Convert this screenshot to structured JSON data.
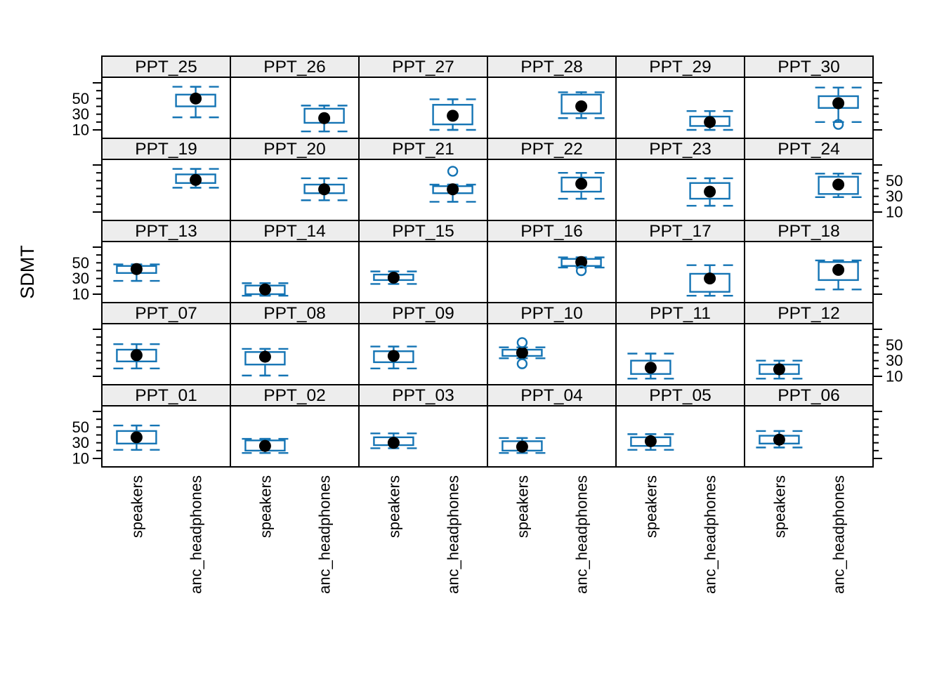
{
  "figure": {
    "ylabel": "SDMT",
    "background": "#ffffff"
  },
  "colors": {
    "box_blue": "#1474b4",
    "median_dot": "#000000",
    "panel_border": "#000000",
    "strip_bg": "#ededed",
    "text": "#000000"
  },
  "axes": {
    "y_tick_values": [
      10,
      20,
      30,
      40,
      50,
      60,
      70
    ],
    "y_labeled_tick_values": [
      50,
      30,
      10
    ],
    "y_tick_labels": [
      "50",
      "30",
      "10"
    ],
    "x_categories": [
      "speakers",
      "anc_headphones"
    ]
  },
  "chart_data": {
    "type": "boxplot",
    "title": "",
    "xlabel": "",
    "ylabel": "SDMT",
    "x_categories": [
      "speakers",
      "anc_headphones"
    ],
    "ylim": [
      0,
      75
    ],
    "facet_rows": [
      [
        "PPT_25",
        "PPT_26",
        "PPT_27",
        "PPT_28",
        "PPT_29",
        "PPT_30"
      ],
      [
        "PPT_19",
        "PPT_20",
        "PPT_21",
        "PPT_22",
        "PPT_23",
        "PPT_24"
      ],
      [
        "PPT_13",
        "PPT_14",
        "PPT_15",
        "PPT_16",
        "PPT_17",
        "PPT_18"
      ],
      [
        "PPT_07",
        "PPT_08",
        "PPT_09",
        "PPT_10",
        "PPT_11",
        "PPT_12"
      ],
      [
        "PPT_01",
        "PPT_02",
        "PPT_03",
        "PPT_04",
        "PPT_05",
        "PPT_06"
      ]
    ],
    "panels": [
      {
        "name": "PPT_01",
        "condition": "speakers",
        "stats": {
          "lo": 21,
          "q1": 29,
          "med": 37,
          "q3": 45,
          "hi": 52
        },
        "outliers": []
      },
      {
        "name": "PPT_02",
        "condition": "speakers",
        "stats": {
          "lo": 17,
          "q1": 20,
          "med": 26,
          "q3": 33,
          "hi": 35
        },
        "outliers": []
      },
      {
        "name": "PPT_03",
        "condition": "speakers",
        "stats": {
          "lo": 23,
          "q1": 27,
          "med": 30,
          "q3": 37,
          "hi": 42
        },
        "outliers": []
      },
      {
        "name": "PPT_04",
        "condition": "speakers",
        "stats": {
          "lo": 17,
          "q1": 20,
          "med": 25,
          "q3": 32,
          "hi": 36
        },
        "outliers": []
      },
      {
        "name": "PPT_05",
        "condition": "speakers",
        "stats": {
          "lo": 21,
          "q1": 26,
          "med": 32,
          "q3": 37,
          "hi": 41
        },
        "outliers": []
      },
      {
        "name": "PPT_06",
        "condition": "speakers",
        "stats": {
          "lo": 24,
          "q1": 29,
          "med": 34,
          "q3": 39,
          "hi": 45
        },
        "outliers": []
      },
      {
        "name": "PPT_07",
        "condition": "speakers",
        "stats": {
          "lo": 20,
          "q1": 29,
          "med": 37,
          "q3": 44,
          "hi": 51
        },
        "outliers": []
      },
      {
        "name": "PPT_08",
        "condition": "speakers",
        "stats": {
          "lo": 11,
          "q1": 25,
          "med": 35,
          "q3": 41,
          "hi": 45
        },
        "outliers": []
      },
      {
        "name": "PPT_09",
        "condition": "speakers",
        "stats": {
          "lo": 20,
          "q1": 28,
          "med": 36,
          "q3": 42,
          "hi": 48
        },
        "outliers": []
      },
      {
        "name": "PPT_10",
        "condition": "speakers",
        "stats": {
          "lo": 33,
          "q1": 36,
          "med": 40,
          "q3": 44,
          "hi": 47
        },
        "outliers": [
          53,
          26
        ]
      },
      {
        "name": "PPT_11",
        "condition": "speakers",
        "stats": {
          "lo": 7,
          "q1": 13,
          "med": 21,
          "q3": 30,
          "hi": 39
        },
        "outliers": []
      },
      {
        "name": "PPT_12",
        "condition": "speakers",
        "stats": {
          "lo": 7,
          "q1": 13,
          "med": 19,
          "q3": 25,
          "hi": 30
        },
        "outliers": []
      },
      {
        "name": "PPT_13",
        "condition": "speakers",
        "stats": {
          "lo": 27,
          "q1": 37,
          "med": 42,
          "q3": 46,
          "hi": 48
        },
        "outliers": []
      },
      {
        "name": "PPT_14",
        "condition": "speakers",
        "stats": {
          "lo": 8,
          "q1": 10,
          "med": 16,
          "q3": 21,
          "hi": 24
        },
        "outliers": []
      },
      {
        "name": "PPT_15",
        "condition": "speakers",
        "stats": {
          "lo": 23,
          "q1": 28,
          "med": 31,
          "q3": 35,
          "hi": 39
        },
        "outliers": []
      },
      {
        "name": "PPT_16",
        "condition": "anc_headphones",
        "stats": {
          "lo": 44,
          "q1": 46,
          "med": 51,
          "q3": 55,
          "hi": 57
        },
        "outliers": [
          40
        ]
      },
      {
        "name": "PPT_17",
        "condition": "anc_headphones",
        "stats": {
          "lo": 8,
          "q1": 13,
          "med": 30,
          "q3": 36,
          "hi": 47
        },
        "outliers": []
      },
      {
        "name": "PPT_18",
        "condition": "anc_headphones",
        "stats": {
          "lo": 16,
          "q1": 28,
          "med": 41,
          "q3": 51,
          "hi": 53
        },
        "outliers": []
      },
      {
        "name": "PPT_19",
        "condition": "anc_headphones",
        "stats": {
          "lo": 41,
          "q1": 47,
          "med": 51,
          "q3": 58,
          "hi": 65
        },
        "outliers": []
      },
      {
        "name": "PPT_20",
        "condition": "anc_headphones",
        "stats": {
          "lo": 25,
          "q1": 34,
          "med": 39,
          "q3": 45,
          "hi": 53
        },
        "outliers": []
      },
      {
        "name": "PPT_21",
        "condition": "anc_headphones",
        "stats": {
          "lo": 23,
          "q1": 34,
          "med": 39,
          "q3": 43,
          "hi": 45
        },
        "outliers": [
          62
        ]
      },
      {
        "name": "PPT_22",
        "condition": "anc_headphones",
        "stats": {
          "lo": 27,
          "q1": 36,
          "med": 46,
          "q3": 54,
          "hi": 60
        },
        "outliers": []
      },
      {
        "name": "PPT_23",
        "condition": "anc_headphones",
        "stats": {
          "lo": 18,
          "q1": 27,
          "med": 36,
          "q3": 47,
          "hi": 53
        },
        "outliers": []
      },
      {
        "name": "PPT_24",
        "condition": "anc_headphones",
        "stats": {
          "lo": 29,
          "q1": 33,
          "med": 45,
          "q3": 55,
          "hi": 59
        },
        "outliers": []
      },
      {
        "name": "PPT_25",
        "condition": "anc_headphones",
        "stats": {
          "lo": 26,
          "q1": 40,
          "med": 50,
          "q3": 55,
          "hi": 65
        },
        "outliers": []
      },
      {
        "name": "PPT_26",
        "condition": "anc_headphones",
        "stats": {
          "lo": 8,
          "q1": 19,
          "med": 25,
          "q3": 37,
          "hi": 41
        },
        "outliers": []
      },
      {
        "name": "PPT_27",
        "condition": "anc_headphones",
        "stats": {
          "lo": 10,
          "q1": 17,
          "med": 28,
          "q3": 42,
          "hi": 49
        },
        "outliers": []
      },
      {
        "name": "PPT_28",
        "condition": "anc_headphones",
        "stats": {
          "lo": 25,
          "q1": 31,
          "med": 40,
          "q3": 55,
          "hi": 58
        },
        "outliers": []
      },
      {
        "name": "PPT_29",
        "condition": "anc_headphones",
        "stats": {
          "lo": 10,
          "q1": 15,
          "med": 20,
          "q3": 27,
          "hi": 34
        },
        "outliers": []
      },
      {
        "name": "PPT_30",
        "condition": "anc_headphones",
        "stats": {
          "lo": 20,
          "q1": 38,
          "med": 44,
          "q3": 53,
          "hi": 64
        },
        "outliers": [
          17
        ]
      }
    ],
    "legend": null,
    "grid": false
  }
}
